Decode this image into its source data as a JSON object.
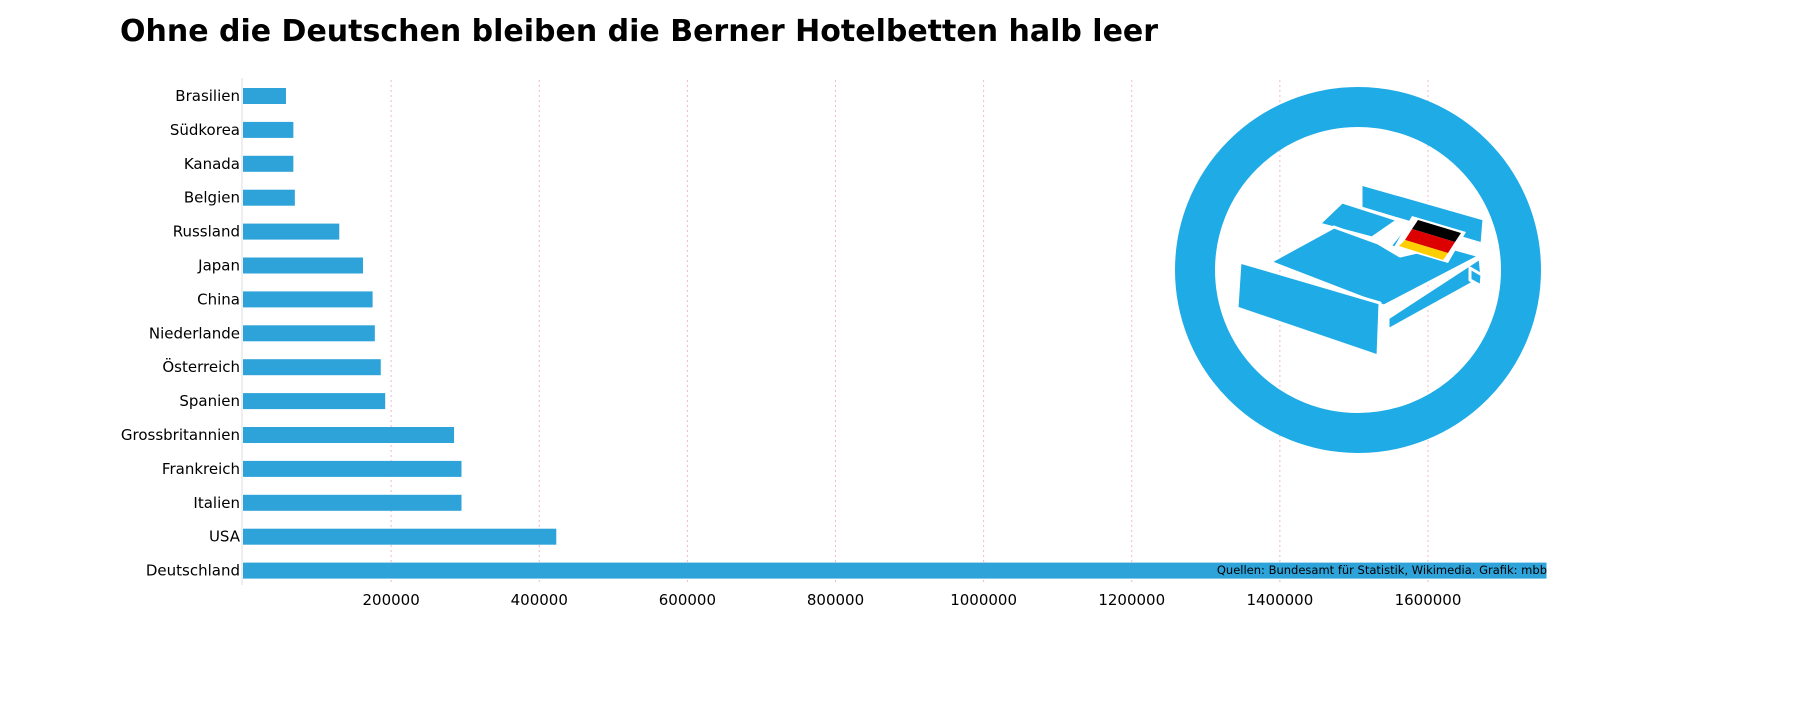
{
  "title": "Ohne die Deutschen bleiben die Berner Hotelbetten halb leer",
  "source": "Quellen: Bundesamt für Statistik, Wikimedia. Grafik: mbb",
  "colors": {
    "bar": "#2ea3d9",
    "icon": "#1eabe6",
    "grid": "#f2b8c6",
    "flag_black": "#000000",
    "flag_red": "#dd0000",
    "flag_gold": "#ffce00"
  },
  "chart_data": {
    "type": "bar",
    "orientation": "horizontal",
    "title": "Ohne die Deutschen bleiben die Berner Hotelbetten halb leer",
    "categories": [
      "Brasilien",
      "Südkorea",
      "Kanada",
      "Belgien",
      "Russland",
      "Japan",
      "China",
      "Niederlande",
      "Österreich",
      "Spanien",
      "Grossbritannien",
      "Frankreich",
      "Italien",
      "USA",
      "Deutschland"
    ],
    "values": [
      58000,
      68000,
      68000,
      70000,
      130000,
      162000,
      175000,
      178000,
      186000,
      192000,
      285000,
      295000,
      295000,
      423000,
      1760000
    ],
    "xticks": [
      200000,
      400000,
      600000,
      800000,
      1000000,
      1200000,
      1400000,
      1600000
    ],
    "xtick_labels": [
      "200000",
      "400000",
      "600000",
      "800000",
      "1000000",
      "1200000",
      "1400000",
      "1600000"
    ],
    "xlim": [
      0,
      1760000
    ],
    "xlabel": "",
    "ylabel": "",
    "grid": "vertical dotted",
    "legend": "none",
    "icon": "bed with German flag pillow in circle"
  }
}
